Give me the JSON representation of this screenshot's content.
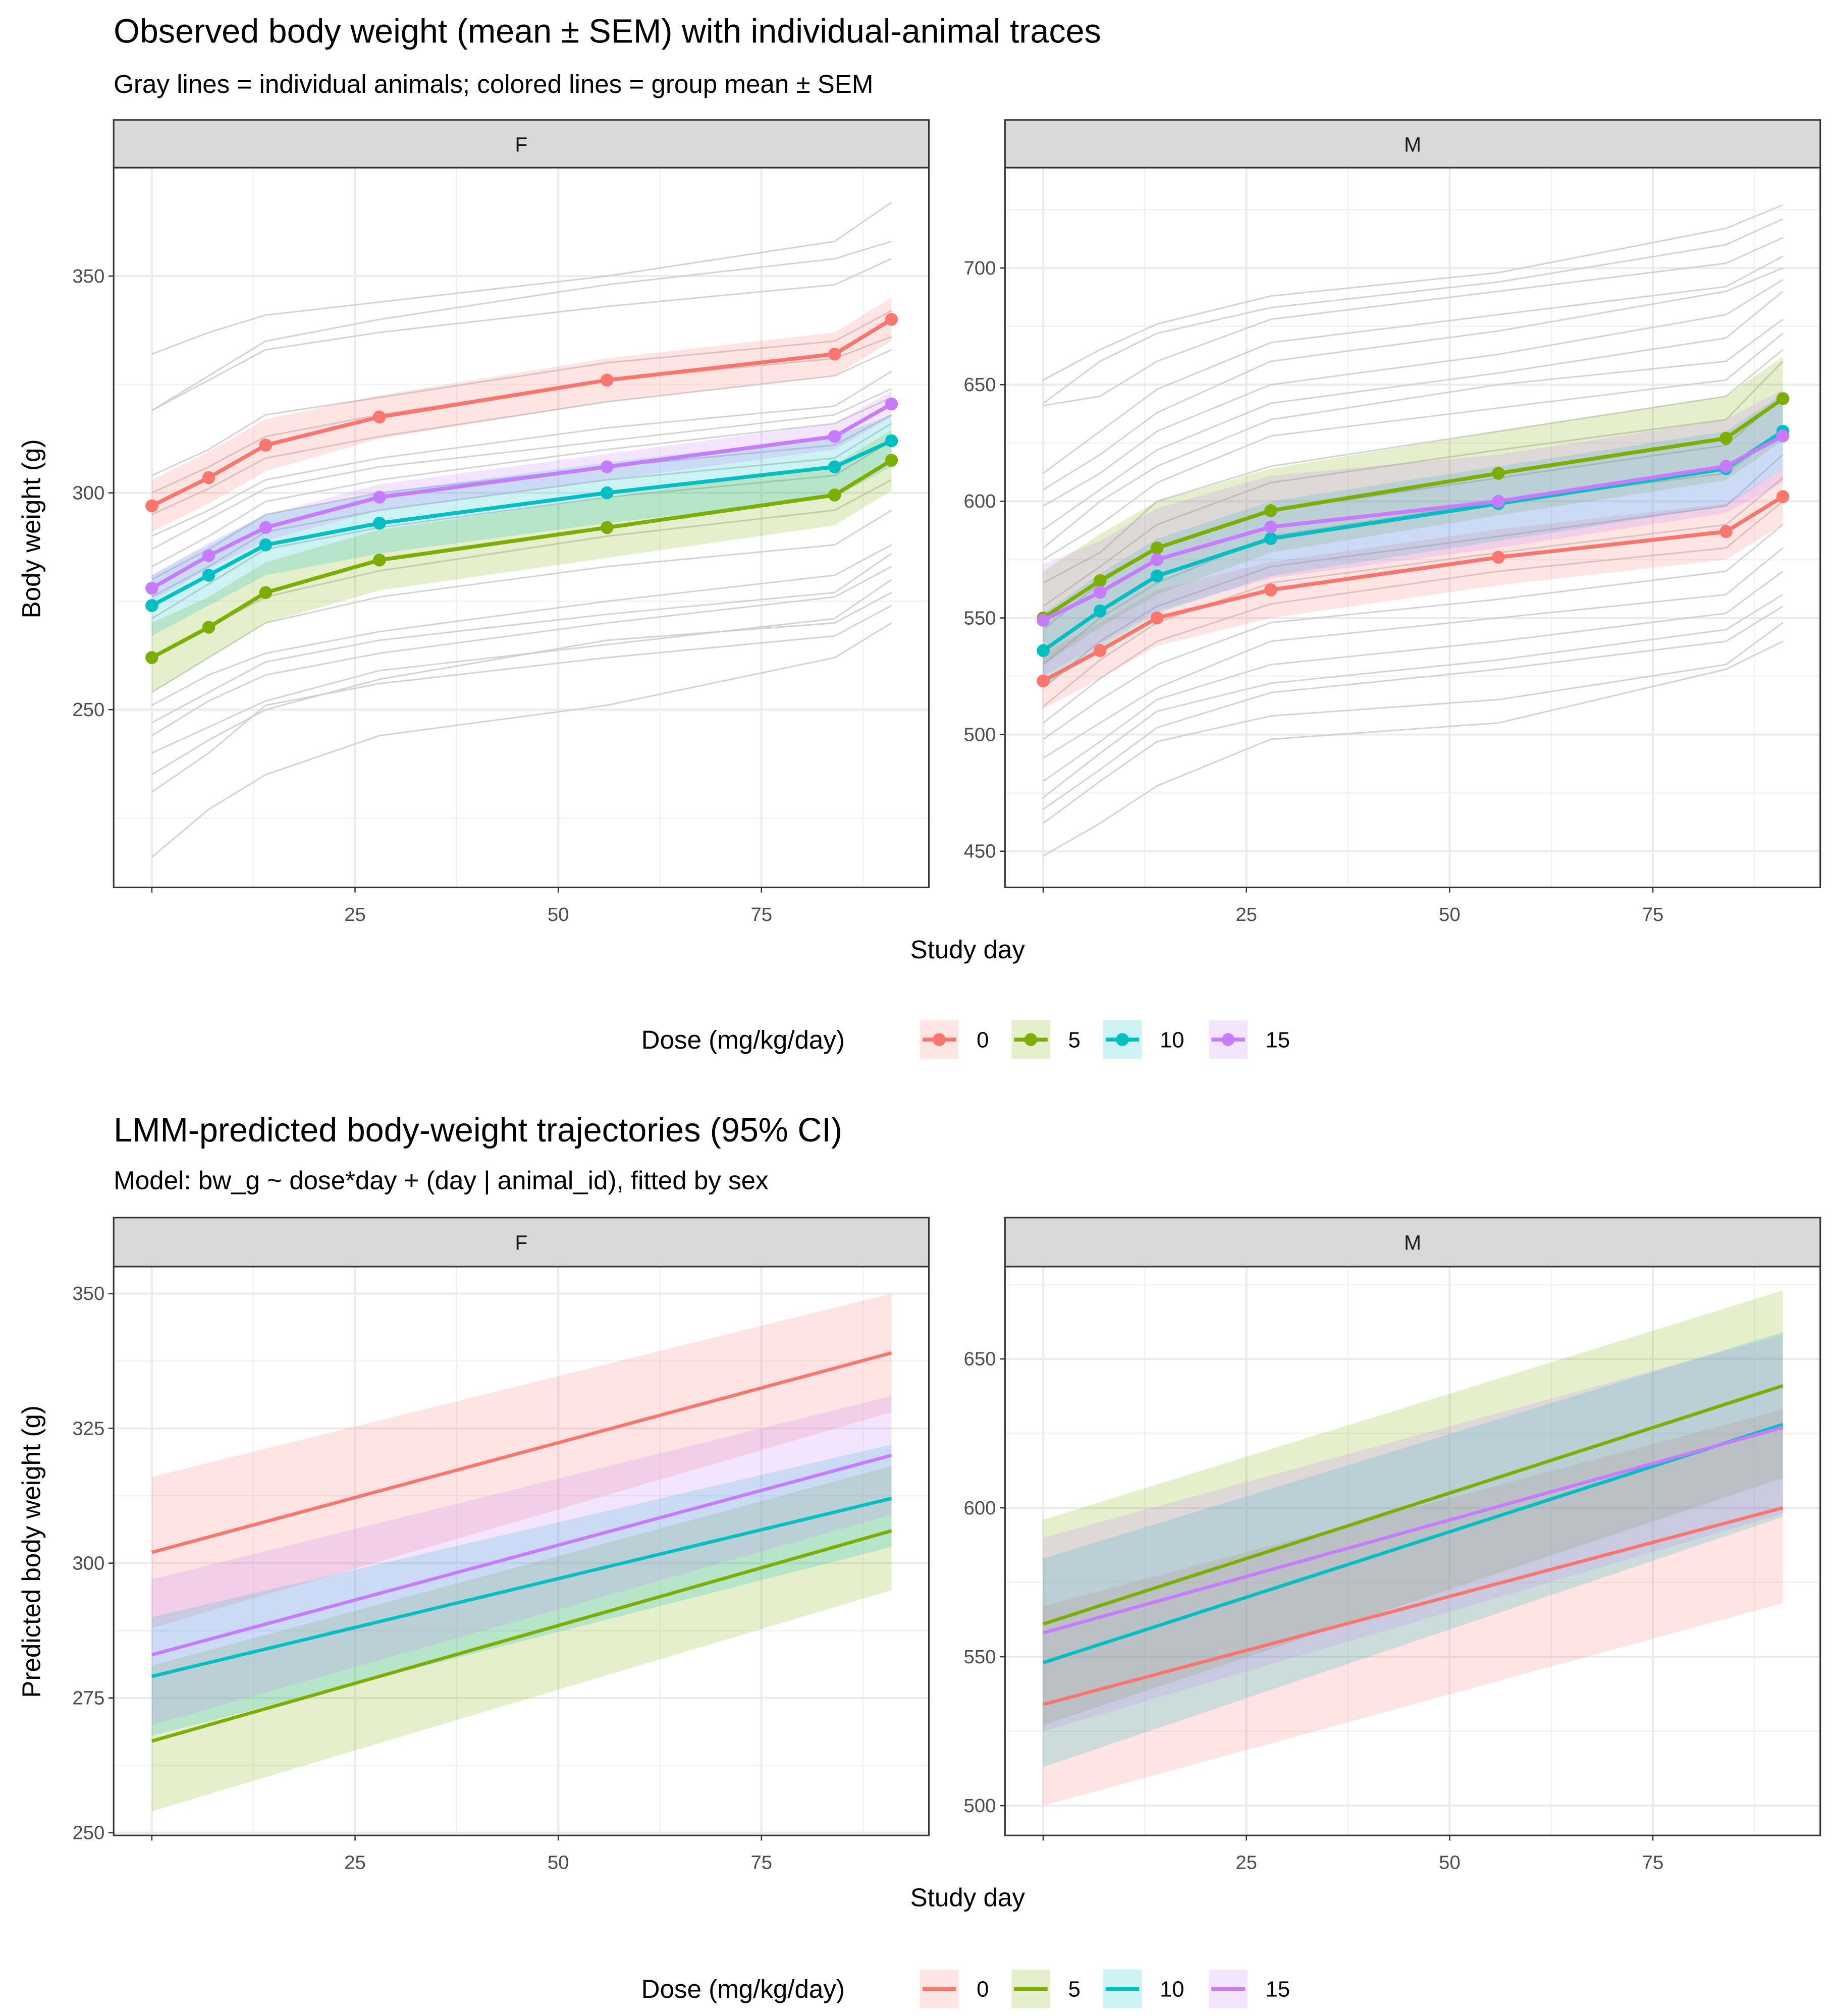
{
  "figure1": {
    "title": "Observed body weight (mean ± SEM) with individual-animal traces",
    "subtitle": "Gray lines = individual animals; colored lines = group mean ± SEM",
    "xlabel": "Study day",
    "ylabel": "Body weight (g)",
    "legend": {
      "title": "Dose (mg/kg/day)",
      "labels": [
        "0",
        "5",
        "10",
        "15"
      ]
    }
  },
  "figure2": {
    "title": "LMM-predicted body-weight trajectories (95% CI)",
    "subtitle": "Model: bw_g ~ dose*day + (day | animal_id), fitted by sex",
    "xlabel": "Study day",
    "ylabel": "Predicted body weight (g)",
    "legend": {
      "title": "Dose (mg/kg/day)",
      "labels": [
        "0",
        "5",
        "10",
        "15"
      ]
    }
  },
  "colors": {
    "0": "#F8766D",
    "5": "#7CAE00",
    "10": "#00BFC4",
    "15": "#C77CFF",
    "individual": "#cccccc"
  },
  "chart_data": [
    {
      "type": "line",
      "figure": "observed",
      "facet": "F",
      "xlim": [
        -4.7,
        95.6
      ],
      "ylim": [
        209,
        375
      ],
      "x_ticks": [
        25,
        50,
        75
      ],
      "y_ticks": [
        250,
        300,
        350
      ],
      "grid": true,
      "legend": "bottom",
      "x": [
        0,
        7,
        14,
        28,
        56,
        84,
        91
      ],
      "series": [
        {
          "name": "0",
          "mean": [
            297,
            303.5,
            311,
            317.5,
            326,
            332,
            340
          ],
          "sem": [
            6,
            6,
            6,
            5,
            5,
            5,
            5
          ]
        },
        {
          "name": "5",
          "mean": [
            262,
            269,
            277,
            284.5,
            292,
            299.5,
            307.5
          ],
          "sem": [
            8,
            7,
            7,
            7,
            7,
            7,
            7
          ]
        },
        {
          "name": "10",
          "mean": [
            274,
            281,
            288,
            293,
            300,
            306,
            312
          ],
          "sem": [
            7,
            7,
            7,
            7,
            7,
            7,
            6
          ]
        },
        {
          "name": "15",
          "mean": [
            278,
            285.5,
            292,
            299,
            306,
            313,
            320.5
          ],
          "sem": [
            3,
            3,
            3,
            3,
            3,
            3,
            3
          ]
        }
      ],
      "individuals": [
        [
          332,
          337,
          341,
          344,
          350,
          358,
          367
        ],
        [
          319,
          327,
          335,
          340,
          348,
          354,
          358
        ],
        [
          319,
          326,
          333,
          337,
          343,
          348,
          354
        ],
        [
          304,
          310,
          318,
          322,
          330,
          335,
          342
        ],
        [
          300,
          306,
          313,
          318,
          326,
          331,
          336
        ],
        [
          295,
          301,
          308,
          313,
          321,
          327,
          333
        ],
        [
          290,
          296,
          303,
          308,
          315,
          320,
          328
        ],
        [
          287,
          294,
          301,
          306,
          312,
          318,
          324
        ],
        [
          283,
          290,
          298,
          303,
          310,
          316,
          322
        ],
        [
          280,
          287,
          295,
          300,
          306,
          311,
          318
        ],
        [
          276,
          283,
          291,
          296,
          303,
          308,
          316
        ],
        [
          271,
          279,
          287,
          292,
          299,
          304,
          312
        ],
        [
          262,
          269,
          276,
          282,
          290,
          296,
          303
        ],
        [
          254,
          262,
          270,
          276,
          283,
          288,
          296
        ],
        [
          251,
          258,
          263,
          268,
          275,
          281,
          288
        ],
        [
          247,
          254,
          261,
          266,
          272,
          277,
          286
        ],
        [
          244,
          252,
          258,
          263,
          270,
          276,
          283
        ],
        [
          240,
          246,
          252,
          259,
          265,
          271,
          280
        ],
        [
          235,
          243,
          250,
          257,
          266,
          270,
          277
        ],
        [
          231,
          240,
          251,
          256,
          262,
          267,
          274
        ],
        [
          216,
          227,
          235,
          244,
          251,
          262,
          270
        ]
      ]
    },
    {
      "type": "line",
      "figure": "observed",
      "facet": "M",
      "xlim": [
        -4.7,
        95.6
      ],
      "ylim": [
        434.5,
        743
      ],
      "x_ticks": [
        25,
        50,
        75
      ],
      "y_ticks": [
        450,
        500,
        550,
        600,
        650,
        700
      ],
      "grid": true,
      "legend": "bottom",
      "x": [
        0,
        7,
        14,
        28,
        56,
        84,
        91
      ],
      "series": [
        {
          "name": "0",
          "mean": [
            523,
            536,
            550,
            562,
            576,
            587,
            602
          ],
          "sem": [
            12,
            12,
            12,
            12,
            12,
            12,
            12
          ]
        },
        {
          "name": "5",
          "mean": [
            550,
            566,
            580,
            596,
            612,
            627,
            644
          ],
          "sem": [
            20,
            20,
            20,
            18,
            18,
            18,
            18
          ]
        },
        {
          "name": "10",
          "mean": [
            536,
            553,
            568,
            584,
            599,
            614,
            630
          ],
          "sem": [
            16,
            16,
            16,
            16,
            16,
            16,
            16
          ]
        },
        {
          "name": "15",
          "mean": [
            549,
            561,
            575,
            589,
            600,
            615,
            628
          ],
          "sem": [
            24,
            22,
            22,
            22,
            20,
            20,
            20
          ]
        }
      ],
      "individuals": [
        [
          652,
          665,
          676,
          688,
          698,
          717,
          727
        ],
        [
          642,
          660,
          672,
          683,
          694,
          710,
          721
        ],
        [
          641,
          645,
          660,
          678,
          690,
          702,
          713
        ],
        [
          612,
          630,
          648,
          668,
          680,
          692,
          705
        ],
        [
          605,
          620,
          638,
          660,
          673,
          690,
          700
        ],
        [
          598,
          612,
          630,
          650,
          663,
          680,
          695
        ],
        [
          588,
          605,
          622,
          642,
          655,
          670,
          690
        ],
        [
          580,
          600,
          615,
          635,
          650,
          660,
          678
        ],
        [
          575,
          590,
          608,
          628,
          640,
          652,
          672
        ],
        [
          565,
          578,
          600,
          615,
          630,
          645,
          665
        ],
        [
          555,
          572,
          590,
          608,
          622,
          635,
          660
        ],
        [
          545,
          565,
          580,
          596,
          610,
          624,
          645
        ],
        [
          530,
          550,
          565,
          585,
          600,
          612,
          630
        ],
        [
          520,
          540,
          555,
          572,
          585,
          598,
          620
        ],
        [
          512,
          532,
          548,
          565,
          578,
          590,
          610
        ],
        [
          505,
          524,
          540,
          556,
          570,
          580,
          600
        ],
        [
          498,
          515,
          530,
          548,
          558,
          570,
          590
        ],
        [
          490,
          505,
          520,
          540,
          550,
          560,
          580
        ],
        [
          480,
          497,
          515,
          530,
          540,
          552,
          570
        ],
        [
          473,
          492,
          510,
          522,
          532,
          545,
          560
        ],
        [
          468,
          485,
          503,
          518,
          528,
          540,
          555
        ],
        [
          462,
          480,
          497,
          508,
          515,
          530,
          548
        ],
        [
          448,
          462,
          478,
          498,
          505,
          528,
          540
        ]
      ]
    },
    {
      "type": "line",
      "figure": "predicted",
      "facet": "F",
      "xlim": [
        -4.7,
        95.6
      ],
      "ylim": [
        249.5,
        355
      ],
      "x_ticks": [
        25,
        50,
        75
      ],
      "y_ticks": [
        250,
        275,
        300,
        325,
        350
      ],
      "grid": true,
      "legend": "bottom",
      "x": [
        0,
        91
      ],
      "series": [
        {
          "name": "0",
          "fit": [
            302,
            339
          ],
          "lower": [
            288,
            328
          ],
          "upper": [
            316,
            350
          ]
        },
        {
          "name": "5",
          "fit": [
            267,
            306
          ],
          "lower": [
            254,
            295
          ],
          "upper": [
            281,
            318
          ]
        },
        {
          "name": "10",
          "fit": [
            279,
            312
          ],
          "lower": [
            268,
            303
          ],
          "upper": [
            290,
            322
          ]
        },
        {
          "name": "15",
          "fit": [
            283,
            320
          ],
          "lower": [
            270,
            309
          ],
          "upper": [
            297,
            331
          ]
        }
      ]
    },
    {
      "type": "line",
      "figure": "predicted",
      "facet": "M",
      "xlim": [
        -4.7,
        95.6
      ],
      "ylim": [
        490,
        681
      ],
      "x_ticks": [
        25,
        50,
        75
      ],
      "y_ticks": [
        500,
        550,
        600,
        650
      ],
      "grid": true,
      "legend": "bottom",
      "x": [
        0,
        91
      ],
      "series": [
        {
          "name": "0",
          "fit": [
            534,
            600
          ],
          "lower": [
            500,
            568
          ],
          "upper": [
            567,
            633
          ]
        },
        {
          "name": "5",
          "fit": [
            561,
            641
          ],
          "lower": [
            527,
            610
          ],
          "upper": [
            596,
            673
          ]
        },
        {
          "name": "10",
          "fit": [
            548,
            628
          ],
          "lower": [
            513,
            597
          ],
          "upper": [
            583,
            659
          ]
        },
        {
          "name": "15",
          "fit": [
            558,
            627
          ],
          "lower": [
            525,
            598
          ],
          "upper": [
            590,
            658
          ]
        }
      ]
    }
  ]
}
